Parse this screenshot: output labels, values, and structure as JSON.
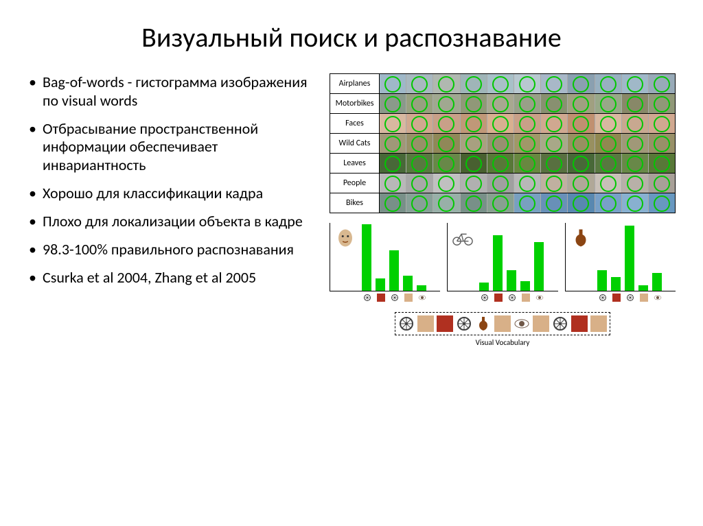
{
  "title": "Визуальный поиск и распознавание",
  "bullets": [
    "Bag-of-words - гистограмма изображения по visual words",
    "Отбрасывание пространственной информации обеспечивает инвариантность",
    "Хорошо для классификации кадра",
    "Плохо для локализации объекта в кадре",
    "98.3-100% правильного распознавания",
    "Csurka et al 2004, Zhang et al 2005"
  ],
  "categories": {
    "rows": [
      {
        "label": "Airplanes",
        "thumbs": [
          "#9fb8c8",
          "#a8b8c0",
          "#b0b8b0",
          "#9fb5b8",
          "#a8c0c8",
          "#b8c8d0",
          "#a8b8c8",
          "#8aa0b0",
          "#98b0c0",
          "#a0b8c8",
          "#98aab8"
        ]
      },
      {
        "label": "Motorbikes",
        "thumbs": [
          "#8a9a8a",
          "#98a080",
          "#a0a890",
          "#909878",
          "#a8a890",
          "#98a088",
          "#889070",
          "#a0a080",
          "#98a888",
          "#888868",
          "#909878"
        ]
      },
      {
        "label": "Faces",
        "thumbs": [
          "#d8b8a0",
          "#d0a890",
          "#c8a088",
          "#c09878",
          "#d8b090",
          "#c8a088",
          "#d0a890",
          "#c09070",
          "#d8b8a0",
          "#c8a890",
          "#d0a890"
        ]
      },
      {
        "label": "Wild Cats",
        "thumbs": [
          "#a09878",
          "#989068",
          "#908858",
          "#a8a080",
          "#989070",
          "#a09868",
          "#a8a888",
          "#989060",
          "#908850",
          "#a09878",
          "#989068"
        ]
      },
      {
        "label": "Leaves",
        "thumbs": [
          "#486838",
          "#587840",
          "#688848",
          "#486030",
          "#587838",
          "#688840",
          "#587040",
          "#486838",
          "#587840",
          "#688848",
          "#587838"
        ]
      },
      {
        "label": "People",
        "thumbs": [
          "#b8b8b8",
          "#a8a8a8",
          "#c0c0c0",
          "#b0b0b0",
          "#a0a0a0",
          "#b8b8b8",
          "#c0b0a0",
          "#b0a898",
          "#c8c0b8",
          "#b8b0a8",
          "#a8a098"
        ]
      },
      {
        "label": "Bikes",
        "thumbs": [
          "#789088",
          "#88a098",
          "#98b0a8",
          "#789088",
          "#88a090",
          "#78a0c0",
          "#6890b8",
          "#5888b0",
          "#78a0c8",
          "#88b0d0",
          "#6898c0"
        ]
      }
    ],
    "thumb_height": 28,
    "circle_color": "#00c800",
    "border_color": "#000000"
  },
  "histograms": [
    {
      "icon": "face",
      "bars": [
        98,
        18,
        60,
        22,
        8
      ],
      "bar_color": "#00d000"
    },
    {
      "icon": "bike",
      "bars": [
        12,
        82,
        30,
        14,
        72
      ],
      "bar_color": "#00d000"
    },
    {
      "icon": "violin",
      "bars": [
        30,
        20,
        96,
        8,
        26
      ],
      "bar_color": "#00d000"
    }
  ],
  "histogram_xicons": [
    "wheel",
    "red",
    "wheel",
    "tan",
    "eye"
  ],
  "histogram_axis_color": "#000000",
  "vocabulary": {
    "items": [
      "wheel",
      "tan",
      "red",
      "wheel",
      "violin",
      "tan",
      "eye",
      "tan",
      "wheel",
      "red",
      "tan"
    ],
    "caption": "Visual Vocabulary",
    "border_style": "dashed",
    "caption_fontsize": 11
  },
  "icon_colors": {
    "wheel": "#404040",
    "tan": "#d8b088",
    "red": "#b03020",
    "eye": "#705848",
    "violin": "#8b4513",
    "face": "#d8b890",
    "bike": "#606060"
  }
}
